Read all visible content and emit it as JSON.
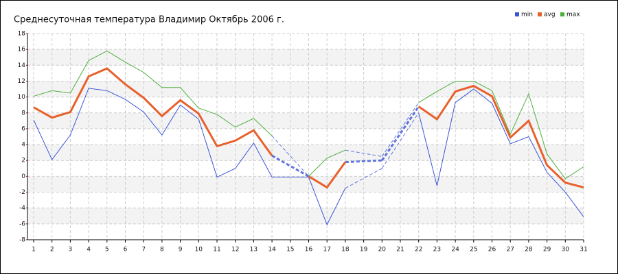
{
  "chart_data": {
    "type": "line",
    "title": "Среднесуточная температура Владимир  Октябрь 2006 г.",
    "categories": [
      1,
      2,
      3,
      4,
      5,
      6,
      7,
      8,
      9,
      10,
      11,
      12,
      13,
      14,
      15,
      16,
      17,
      18,
      19,
      20,
      21,
      22,
      23,
      24,
      25,
      26,
      27,
      28,
      29,
      30,
      31
    ],
    "series": [
      {
        "name": "min",
        "color": "#3a55d8",
        "values": [
          7.1,
          2.1,
          5.2,
          11.1,
          10.8,
          9.7,
          8.1,
          5.2,
          9.0,
          7.2,
          -0.1,
          1.0,
          4.2,
          -0.1,
          -0.1,
          -0.1,
          -6.1,
          -1.5,
          null,
          1.0,
          null,
          8.0,
          -1.2,
          9.3,
          11.0,
          9.2,
          4.1,
          5.0,
          0.5,
          -2.0,
          -5.1
        ]
      },
      {
        "name": "avg",
        "color": "#e8602c",
        "values": [
          8.7,
          7.4,
          8.1,
          12.6,
          13.6,
          11.6,
          9.9,
          7.6,
          9.6,
          7.9,
          3.8,
          4.5,
          5.8,
          2.6,
          null,
          0.0,
          -1.4,
          1.8,
          null,
          2.0,
          null,
          8.8,
          7.2,
          10.7,
          11.4,
          10.1,
          4.9,
          7.0,
          1.4,
          -0.8,
          -1.4
        ]
      },
      {
        "name": "max",
        "color": "#4caf3a",
        "values": [
          10.1,
          10.8,
          10.5,
          14.6,
          15.8,
          14.4,
          13.1,
          11.2,
          11.2,
          8.6,
          7.8,
          6.2,
          7.3,
          5.1,
          null,
          0.0,
          2.3,
          3.3,
          null,
          2.5,
          null,
          9.3,
          10.7,
          12.0,
          12.0,
          10.8,
          5.3,
          10.4,
          2.8,
          -0.3,
          1.2
        ]
      }
    ],
    "ylim": [
      -8,
      18
    ],
    "yticks": [
      -8,
      -6,
      -4,
      -2,
      0,
      2,
      4,
      6,
      8,
      10,
      12,
      14,
      16,
      18
    ],
    "grid": true
  }
}
